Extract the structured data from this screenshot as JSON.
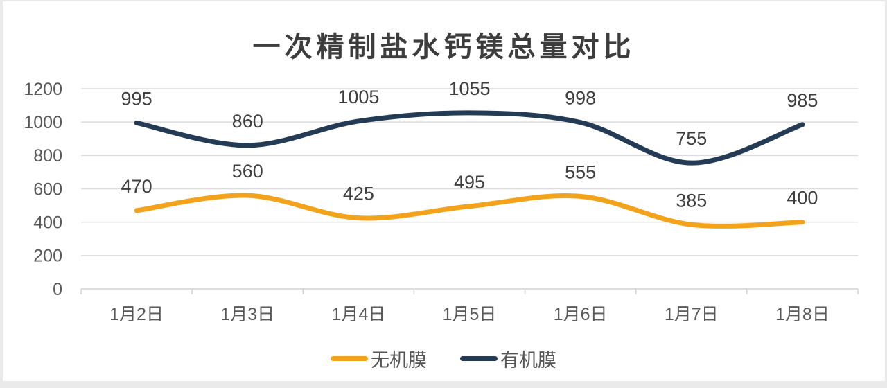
{
  "page": {
    "background_color": "#eaeaea",
    "card_color": "#ffffff"
  },
  "chart_data": {
    "type": "line",
    "title": "一次精制盐水钙镁总量对比",
    "categories": [
      "1月2日",
      "1月3日",
      "1月4日",
      "1月5日",
      "1月6日",
      "1月7日",
      "1月8日"
    ],
    "series": [
      {
        "name": "无机膜",
        "values": [
          470,
          560,
          425,
          495,
          555,
          385,
          400
        ],
        "color": "#F3A31B"
      },
      {
        "name": "有机膜",
        "values": [
          995,
          860,
          1005,
          1055,
          998,
          755,
          985
        ],
        "color": "#233B54"
      }
    ],
    "xlabel": "",
    "ylabel": "",
    "ylim": [
      0,
      1200
    ],
    "y_ticks": [
      0,
      200,
      400,
      600,
      800,
      1000,
      1200
    ],
    "grid": true,
    "smooth": true,
    "data_labels": true,
    "legend_position": "bottom",
    "colors": {
      "title_text": "#3d3d3d",
      "data_label_text": "#3f3f3f",
      "axis_text": "#595959",
      "gridline": "#dcdcdc",
      "axis_line": "#d2d2d2",
      "legend_text": "#555555"
    }
  }
}
